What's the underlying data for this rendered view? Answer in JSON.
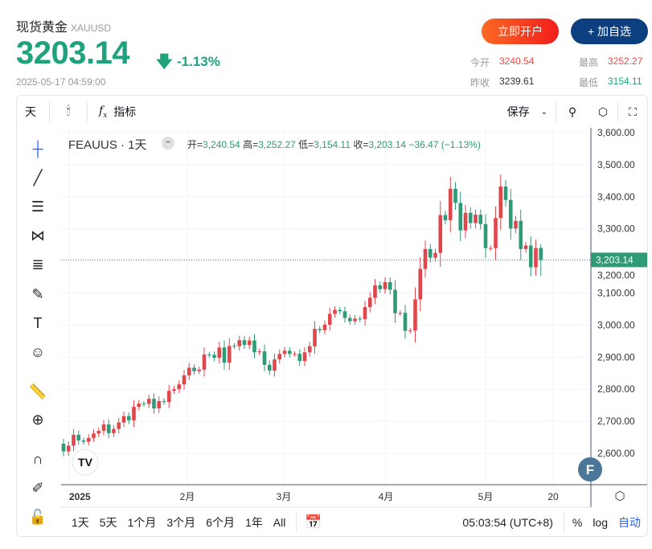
{
  "header": {
    "name": "现货黄金",
    "symbol": "XAUUSD",
    "price": "3203.14",
    "change_pct": "-1.13%",
    "timestamp": "2025-05-17 04:59:00",
    "open_account": "立即开户",
    "add_watch": "+ 加自选"
  },
  "stats": {
    "open_label": "今开",
    "open": "3240.54",
    "high_label": "最高",
    "high": "3252.27",
    "prev_label": "昨收",
    "prev": "3239.61",
    "low_label": "最低",
    "low": "3154.11"
  },
  "toolbar": {
    "interval": "天",
    "indicators": "指标",
    "save": "保存"
  },
  "legend": {
    "symbol": "FEAUUS · 1天",
    "o_label": "开=",
    "o": "3,240.54",
    "h_label": "高=",
    "h": "3,252.27",
    "l_label": "低=",
    "l": "3,154.11",
    "c_label": "收=",
    "c": "3,203.14",
    "chg": "−36.47 (−1.13%)"
  },
  "bottom": {
    "ranges": [
      "1天",
      "5天",
      "1个月",
      "3个月",
      "6个月",
      "1年",
      "All"
    ],
    "clock": "05:03:54 (UTC+8)",
    "pct": "%",
    "log": "log",
    "auto": "自动"
  },
  "colors": {
    "up": "#e0474c",
    "down": "#2f9a76",
    "accent": "#2962ff"
  },
  "chart_data": {
    "type": "candlestick",
    "y_ticks": [
      "3,600.00",
      "3,500.00",
      "3,400.00",
      "3,300.00",
      "3,200.00",
      "3,100.00",
      "3,000.00",
      "2,900.00",
      "2,800.00",
      "2,700.00",
      "2,600.00"
    ],
    "ylim": [
      2555,
      3610
    ],
    "x_ticks": [
      "2025",
      "2月",
      "3月",
      "4月",
      "5月",
      "20"
    ],
    "last_price_label": "3,203.14",
    "first_open": 2630,
    "closes": [
      2606,
      2624,
      2658,
      2640,
      2636,
      2648,
      2662,
      2670,
      2690,
      2663,
      2676,
      2696,
      2716,
      2703,
      2745,
      2755,
      2754,
      2770,
      2740,
      2763,
      2760,
      2795,
      2800,
      2815,
      2843,
      2867,
      2856,
      2861,
      2908,
      2907,
      2898,
      2930,
      2883,
      2935,
      2934,
      2953,
      2938,
      2952,
      2915,
      2918,
      2876,
      2858,
      2893,
      2910,
      2920,
      2910,
      2910,
      2888,
      2915,
      2934,
      2988,
      2984,
      3001,
      3035,
      3047,
      3043,
      3022,
      3012,
      3020,
      3018,
      3056,
      3085,
      3124,
      3112,
      3134,
      3110,
      3037,
      3038,
      2982,
      2983,
      3080,
      3175,
      3237,
      3210,
      3225,
      3343,
      3327,
      3425,
      3381,
      3295,
      3350,
      3318,
      3344,
      3315,
      3240,
      3240,
      3334,
      3432,
      3390,
      3301,
      3325,
      3237,
      3248,
      3180,
      3240,
      3203.14
    ],
    "last": {
      "open": 3240.54,
      "high": 3252.27,
      "low": 3154.11,
      "close": 3203.14
    }
  }
}
